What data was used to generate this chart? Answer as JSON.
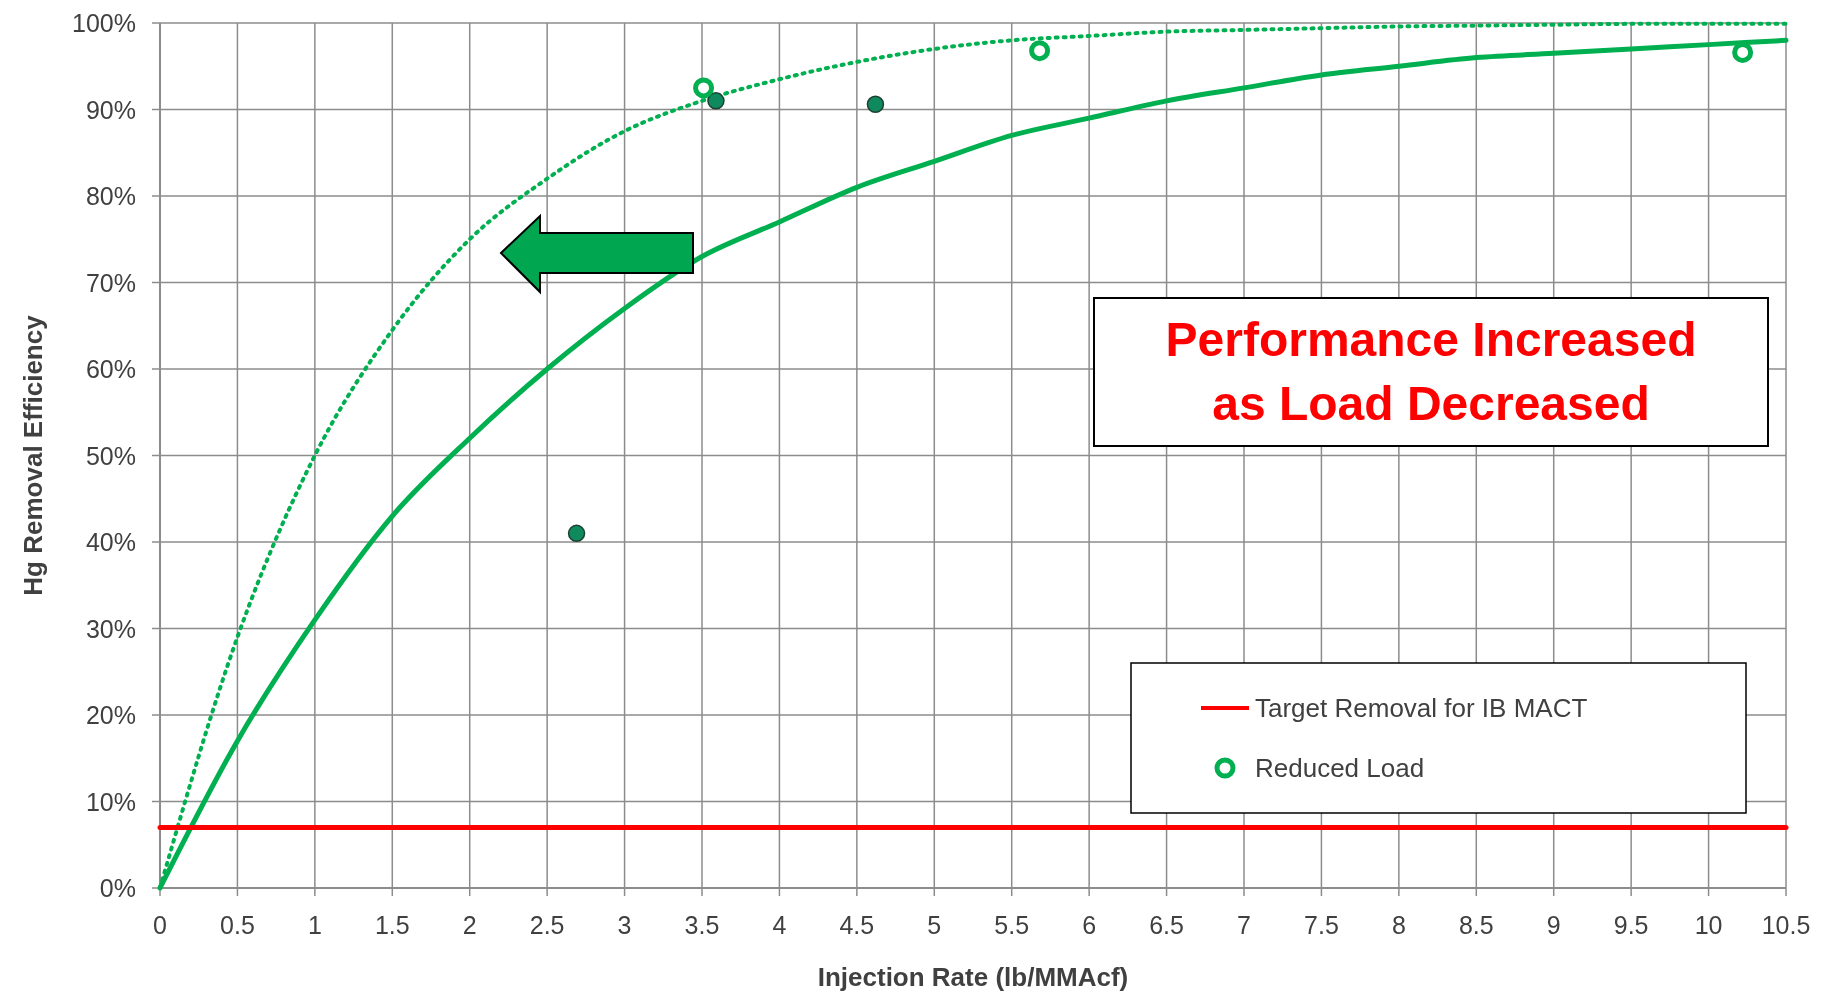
{
  "chart_data": {
    "type": "scatter",
    "xlabel": "Injection Rate (lb/MMAcf)",
    "ylabel": "Hg Removal Efficiency",
    "annotations": [
      "Performance Increased\nas Load Decreased"
    ],
    "xlim": [
      0,
      10.5
    ],
    "ylim": [
      0,
      100
    ],
    "xticks": [
      0,
      0.5,
      1,
      1.5,
      2,
      2.5,
      3,
      3.5,
      4,
      4.5,
      5,
      5.5,
      6,
      6.5,
      7,
      7.5,
      8,
      8.5,
      9,
      9.5,
      10,
      10.5
    ],
    "yticks": [
      {
        "value": 0,
        "label": "0%"
      },
      {
        "value": 10,
        "label": "10%"
      },
      {
        "value": 20,
        "label": "20%"
      },
      {
        "value": 30,
        "label": "30%"
      },
      {
        "value": 40,
        "label": "40%"
      },
      {
        "value": 50,
        "label": "50%"
      },
      {
        "value": 60,
        "label": "60%"
      },
      {
        "value": 70,
        "label": "70%"
      },
      {
        "value": 80,
        "label": "80%"
      },
      {
        "value": 90,
        "label": "90%"
      },
      {
        "value": 100,
        "label": "100%"
      }
    ],
    "grid": true,
    "legend": "bottom right",
    "series": [
      {
        "type": "line",
        "color": "#00b050",
        "line_style": "solid",
        "x": [
          0,
          0.5,
          1,
          1.5,
          2,
          2.5,
          3,
          3.5,
          4,
          4.5,
          5,
          5.5,
          6,
          6.5,
          7,
          7.5,
          8,
          8.5,
          9,
          9.5,
          10,
          10.5
        ],
        "values": [
          0,
          17,
          31,
          43,
          52,
          60,
          67,
          73,
          77,
          81,
          84,
          87,
          89,
          91,
          92.5,
          94,
          95,
          96,
          96.5,
          97,
          97.5,
          98
        ]
      },
      {
        "type": "line",
        "color": "#00b050",
        "line_style": "dotted",
        "x": [
          0,
          0.5,
          1,
          1.5,
          2,
          2.5,
          3,
          3.5,
          4,
          4.5,
          5,
          5.5,
          6,
          6.5,
          7,
          7.5,
          8,
          8.5,
          9,
          9.5,
          10,
          10.5
        ],
        "values": [
          0,
          29,
          50,
          64.5,
          75,
          82,
          87.5,
          91,
          93.5,
          95.5,
          97,
          98,
          98.5,
          99,
          99.2,
          99.4,
          99.6,
          99.7,
          99.8,
          99.9,
          99.9,
          99.9
        ]
      },
      {
        "marker": "circle",
        "color": "#0f8a5f",
        "x": [
          2.69,
          3.59,
          4.62
        ],
        "values": [
          41,
          91,
          90.6
        ]
      },
      {
        "type": "line",
        "name": "Target Removal for IB MACT",
        "color": "#ff0000",
        "x": [
          0,
          10.5
        ],
        "values": [
          7,
          7
        ]
      },
      {
        "marker": "circle",
        "name": "Reduced Load",
        "color": "#00b050",
        "x": [
          3.51,
          5.68,
          10.22
        ],
        "values": [
          92.5,
          96.8,
          96.6
        ]
      }
    ]
  }
}
